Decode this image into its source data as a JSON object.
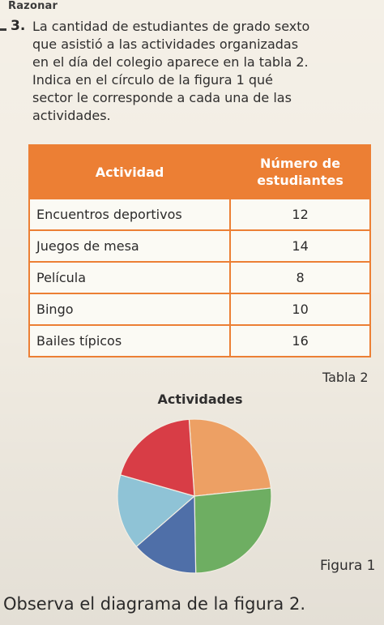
{
  "section": {
    "label": "Razonar"
  },
  "question": {
    "number": "3.",
    "lines": [
      "La cantidad de estudiantes de grado sexto",
      "que asistió a las actividades organizadas",
      "en el día del colegio aparece en la tabla 2.",
      "Indica en el círculo de la figura 1 qué",
      "sector le corresponde a cada una de las",
      "actividades."
    ]
  },
  "table": {
    "headers": [
      "Actividad",
      "Número de estudiantes"
    ],
    "rows": [
      {
        "activity": "Encuentros deportivos",
        "students": "12"
      },
      {
        "activity": "Juegos de mesa",
        "students": "14"
      },
      {
        "activity": "Película",
        "students": "8"
      },
      {
        "activity": "Bingo",
        "students": "10"
      },
      {
        "activity": "Bailes típicos",
        "students": "16"
      }
    ],
    "caption": "Tabla 2"
  },
  "chart_data": {
    "type": "pie",
    "title": "Actividades",
    "slice_angles_deg": [
      88,
      95,
      50,
      57,
      70
    ],
    "colors": [
      "#eda064",
      "#6eae62",
      "#4f6fa8",
      "#8fc3d6",
      "#d83d46"
    ],
    "start_angle_deg": -4,
    "caption": "Figura 1"
  },
  "footer": {
    "text": "Observa el diagrama de la figura 2."
  }
}
